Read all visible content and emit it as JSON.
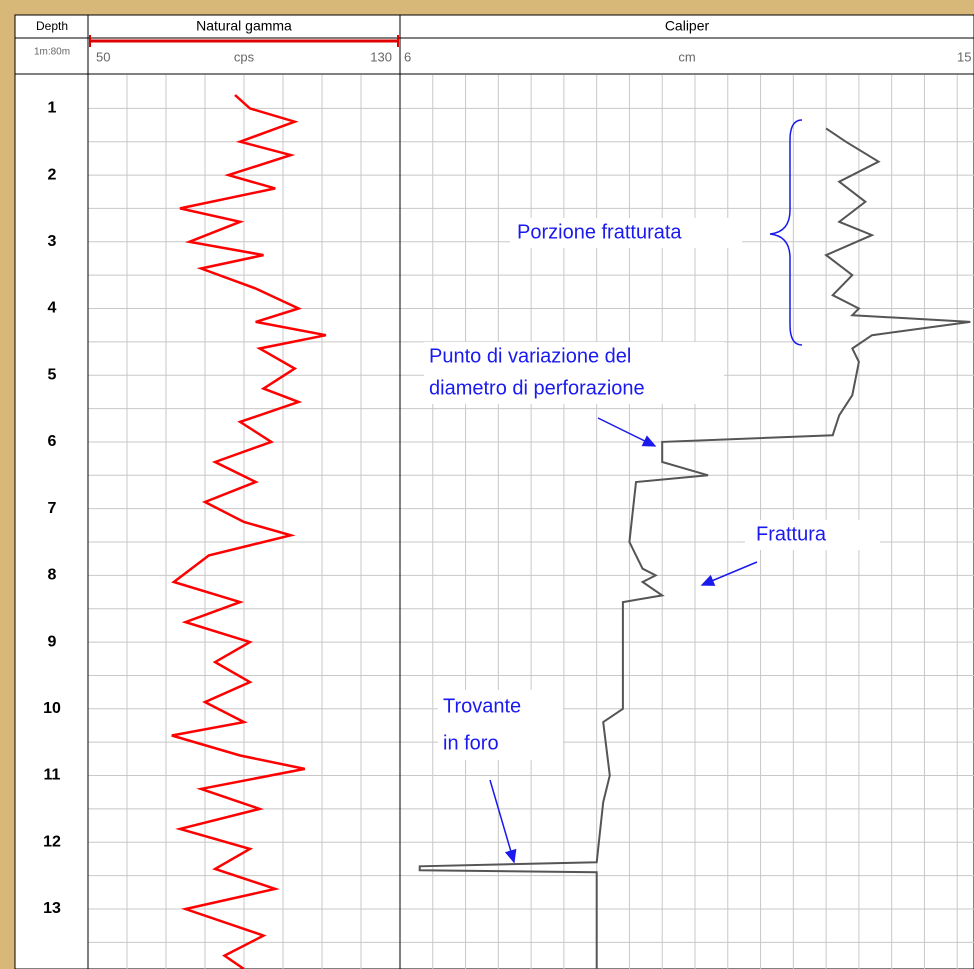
{
  "chart_data": {
    "type": "well-log",
    "depth_title": "Depth",
    "scale": "1m:80m",
    "ylim": [
      0.5,
      13.9
    ],
    "yticks": [
      1,
      2,
      3,
      4,
      5,
      6,
      7,
      8,
      9,
      10,
      11,
      12,
      13,
      14
    ],
    "minor_yticks": [
      1.5,
      2.5,
      3.5,
      4.5,
      5.5,
      6.5,
      7.5,
      8.5,
      9.5,
      10.5,
      11.5,
      12.5,
      13.5
    ],
    "grid": true,
    "tracks": [
      {
        "title": "Natural gamma",
        "unit": "cps",
        "xlim": [
          50,
          130
        ],
        "xticks": [
          50,
          60,
          70,
          80,
          90,
          100,
          110,
          120,
          130
        ],
        "color": "#ff0000",
        "depth": [
          0.8,
          1.0,
          1.2,
          1.5,
          1.7,
          2.0,
          2.2,
          2.5,
          2.7,
          3.0,
          3.2,
          3.4,
          3.7,
          4.0,
          4.2,
          4.4,
          4.6,
          4.9,
          5.2,
          5.4,
          5.7,
          6.0,
          6.3,
          6.6,
          6.9,
          7.2,
          7.4,
          7.7,
          8.1,
          8.4,
          8.7,
          9.0,
          9.3,
          9.6,
          9.9,
          10.2,
          10.4,
          10.7,
          10.9,
          11.2,
          11.5,
          11.8,
          12.1,
          12.4,
          12.7,
          13.0,
          13.4,
          13.7,
          13.9
        ],
        "values": [
          87.7,
          91.5,
          103,
          89,
          102,
          86,
          98,
          73.6,
          89,
          76,
          95,
          79,
          93,
          104,
          93,
          111,
          94,
          103,
          95,
          104,
          89,
          97,
          82.6,
          93,
          80,
          90,
          102,
          81,
          72,
          89,
          75,
          91.5,
          82.6,
          91.5,
          80,
          90,
          71.5,
          89,
          105.6,
          79,
          94,
          73.6,
          91.5,
          82.6,
          98,
          75,
          95,
          85,
          90
        ]
      },
      {
        "title": "Caliper",
        "unit": "cm",
        "xlim": [
          6,
          15
        ],
        "xticks": [
          6,
          6.5,
          7,
          7.5,
          8,
          8.5,
          9,
          9.5,
          10,
          10.5,
          11,
          11.5,
          12,
          12.5,
          13,
          13.5,
          14,
          14.5,
          15
        ],
        "color": "#555555",
        "depth": [
          1.3,
          1.5,
          1.8,
          2.1,
          2.4,
          2.7,
          2.9,
          3.2,
          3.5,
          3.8,
          4.0,
          4.1,
          4.2,
          4.4,
          4.6,
          4.8,
          5.3,
          5.6,
          5.9,
          6.0,
          6.3,
          6.5,
          6.6,
          7.5,
          7.9,
          8.0,
          8.1,
          8.3,
          8.4,
          10.0,
          10.2,
          11.0,
          11.4,
          12.3,
          12.36,
          12.42,
          12.45,
          13.9
        ],
        "values": [
          12.5,
          12.8,
          13.3,
          12.7,
          13.1,
          12.7,
          13.2,
          12.5,
          12.9,
          12.6,
          13.0,
          12.9,
          14.7,
          13.2,
          12.9,
          13.0,
          12.9,
          12.7,
          12.6,
          10.0,
          10.0,
          10.7,
          9.6,
          9.5,
          9.7,
          9.9,
          9.7,
          10.0,
          9.4,
          9.4,
          9.1,
          9.2,
          9.1,
          9.0,
          6.3,
          6.3,
          9.0,
          9.0
        ]
      }
    ],
    "annotations": [
      "Porzione fratturata",
      "Punto di variazione del",
      "diametro di perforazione",
      "Frattura",
      "Trovante",
      "in foro"
    ]
  }
}
